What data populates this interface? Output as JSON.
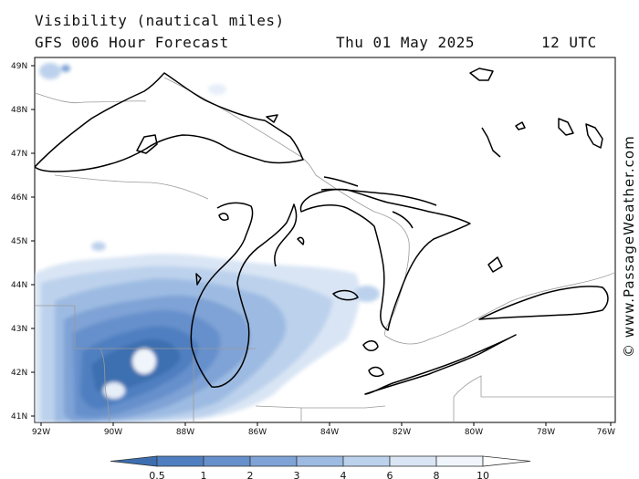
{
  "header": {
    "title": "Visibility (nautical miles)",
    "model": "GFS 006 Hour Forecast",
    "date": "Thu 01 May 2025",
    "time": "12 UTC"
  },
  "credit": "© www.PassageWeather.com",
  "map": {
    "lat_labels": [
      "49N",
      "48N",
      "47N",
      "46N",
      "45N",
      "44N",
      "43N",
      "42N",
      "41N"
    ],
    "lon_labels": [
      "92W",
      "90W",
      "88W",
      "86W",
      "84W",
      "82W",
      "80W",
      "78W",
      "76W"
    ]
  },
  "legend": {
    "levels": [
      "0.5",
      "1",
      "2",
      "3",
      "4",
      "6",
      "8",
      "10"
    ],
    "colors": [
      "#3d6fb0",
      "#4f7fc0",
      "#6690cc",
      "#7fa3d6",
      "#9dbbe2",
      "#bcd1ec",
      "#d9e5f4",
      "#f0f5fb",
      "#ffffff"
    ]
  }
}
